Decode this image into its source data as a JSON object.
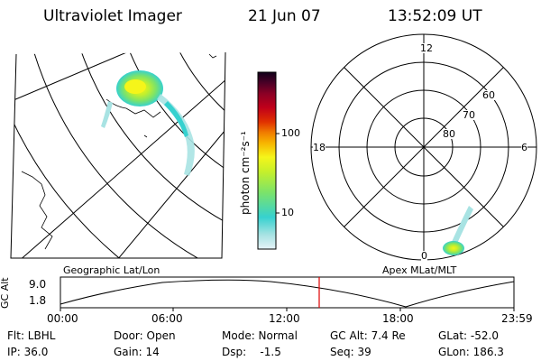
{
  "header": {
    "title": "Ultraviolet Imager",
    "date": "21 Jun 07",
    "time": "13:52:09 UT"
  },
  "colorbar": {
    "label": "photon cm⁻²s⁻¹",
    "ticks": [
      "100",
      "10"
    ],
    "colors": [
      "#e6f2f7",
      "#a8e3e3",
      "#36d1cf",
      "#7be36a",
      "#c7f02a",
      "#f5f51a",
      "#f7b400",
      "#f07b00",
      "#e03000",
      "#c0001a",
      "#8a0025",
      "#4a0026",
      "#11001a"
    ]
  },
  "geo_map": {
    "caption": "Geographic Lat/Lon"
  },
  "polar_plot": {
    "caption": "Apex MLat/MLT",
    "mlt_labels": {
      "top": "12",
      "left": "18",
      "right": "6",
      "bottom": "0"
    },
    "lat_labels": [
      "60",
      "70",
      "80"
    ]
  },
  "altitude_strip": {
    "ylabel": "GC Alt",
    "yticks": [
      "9.0",
      "1.8"
    ],
    "xticks": [
      "00:00",
      "06:00",
      "12:00",
      "18:00",
      "23:59"
    ],
    "marker_color": "#e00000"
  },
  "info": {
    "filter": "Flt: LBHL",
    "ip": "IP: 36.0",
    "door": "Door: Open",
    "gain": "Gain: 14",
    "mode": "Mode: Normal",
    "dsp": "Dsp:    -1.5",
    "gc_alt": "GC Alt: 7.4 Re",
    "seq": "Seq: 39",
    "glat": "GLat: -52.0",
    "glon": "GLon: 186.3"
  }
}
